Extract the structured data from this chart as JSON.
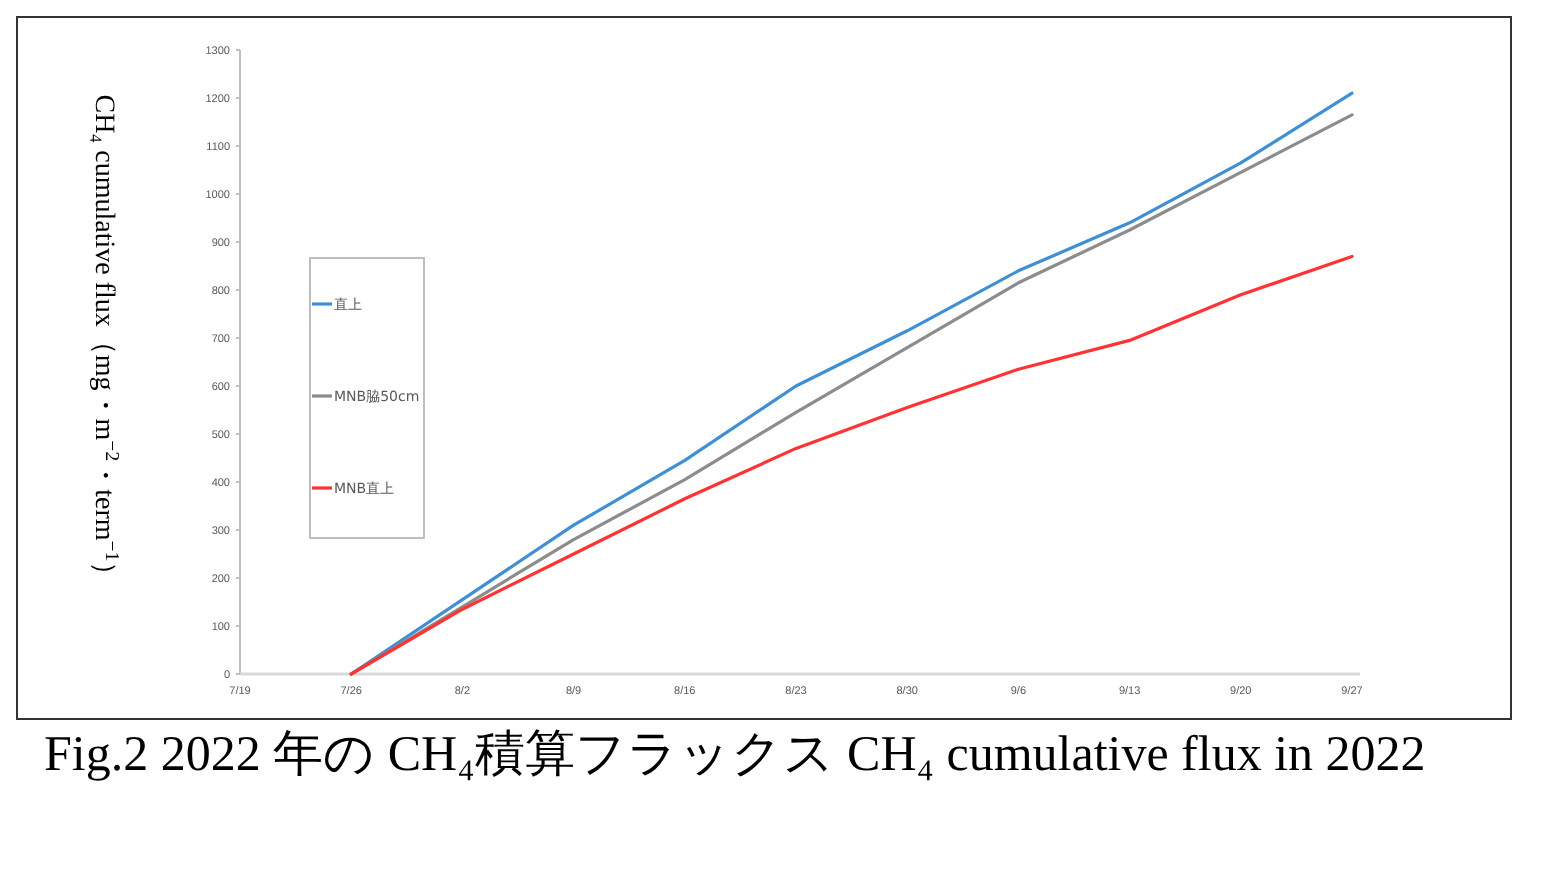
{
  "chart_data": {
    "type": "line",
    "ylabel": "CH₄ cumulative flux（mg・m$^{−2}$・term$^{−1}$）",
    "categories": [
      "7/19",
      "7/26",
      "8/2",
      "8/9",
      "8/16",
      "8/23",
      "8/30",
      "9/6",
      "9/13",
      "9/20",
      "9/27"
    ],
    "series": [
      {
        "name": "直上",
        "color": "#3f8fd2",
        "values": [
          null,
          0,
          155,
          310,
          445,
          600,
          715,
          840,
          940,
          1065,
          1210
        ]
      },
      {
        "name": "MNB脇50cm",
        "color": "#8c8c8c",
        "values": [
          null,
          0,
          140,
          280,
          405,
          545,
          680,
          815,
          925,
          1045,
          1165
        ]
      },
      {
        "name": "MNB直上",
        "color": "#ff3333",
        "values": [
          null,
          0,
          135,
          250,
          365,
          470,
          555,
          635,
          695,
          790,
          870
        ]
      }
    ],
    "ylim": [
      0,
      1300
    ],
    "yticks": [
      0,
      100,
      200,
      300,
      400,
      500,
      600,
      700,
      800,
      900,
      1000,
      1100,
      1200,
      1300
    ],
    "grid": false,
    "legend": "left",
    "marker": "none",
    "line_style": "solid",
    "annotations": [
      "Fig.2 2022 年の CH₄積算フラックス CH₄ cumulative flux in 2022"
    ]
  }
}
